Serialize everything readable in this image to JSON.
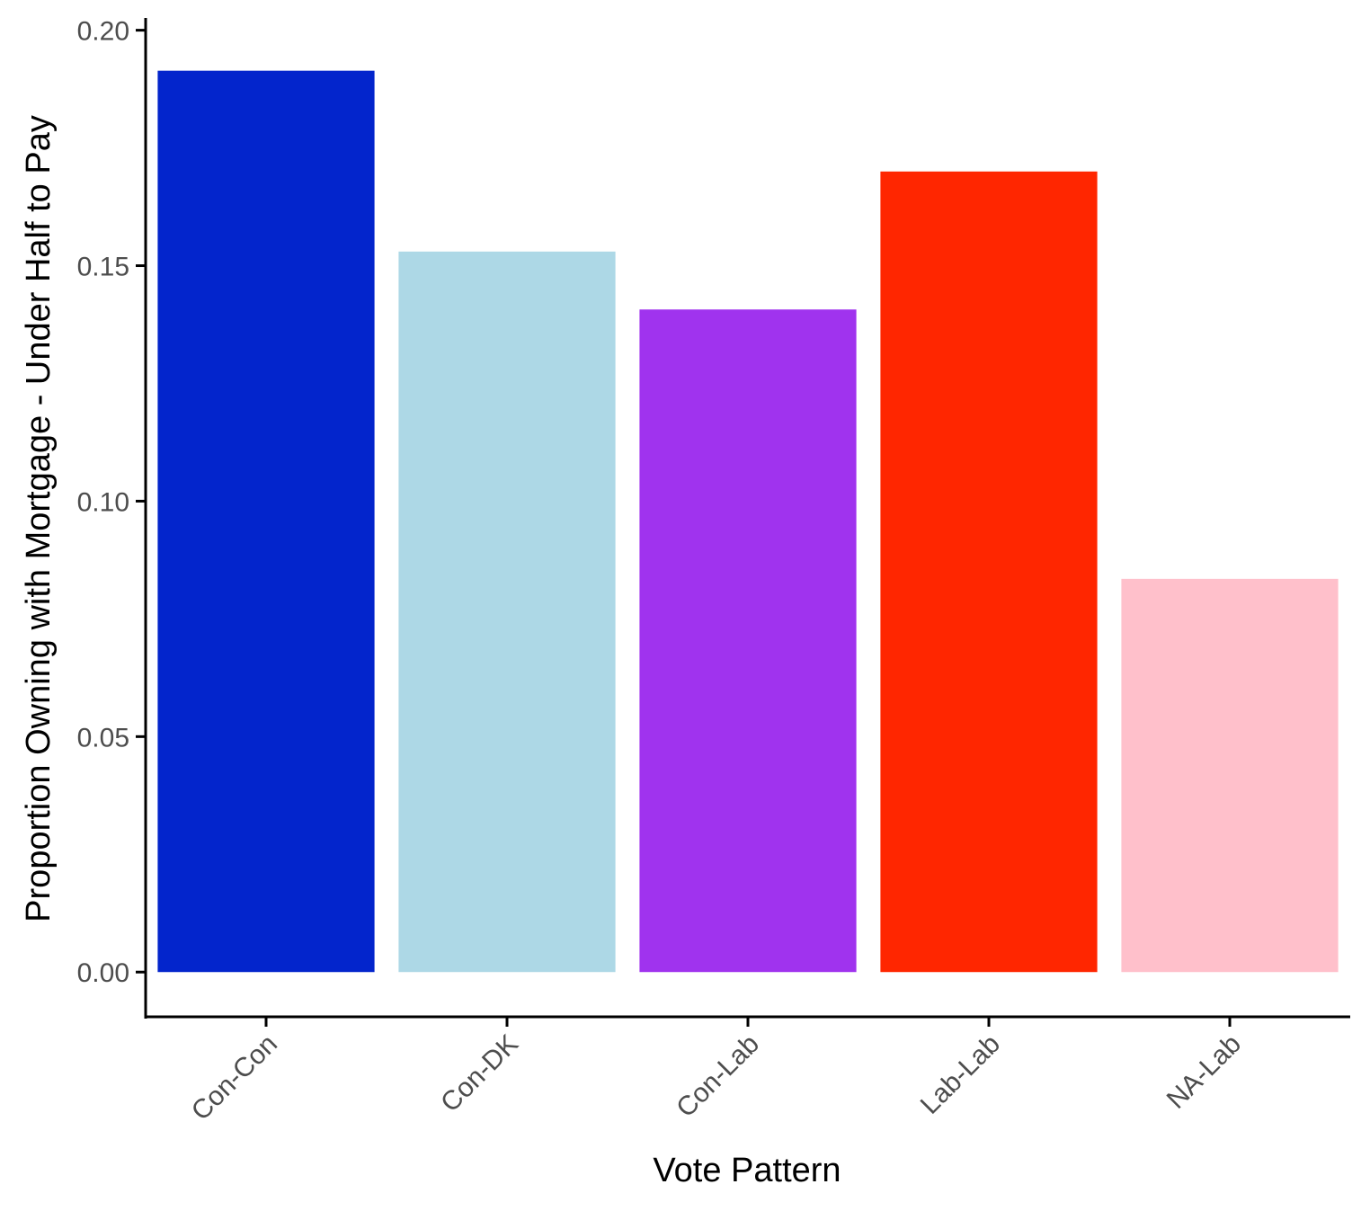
{
  "chart_data": {
    "type": "bar",
    "title": "",
    "xlabel": "Vote Pattern",
    "ylabel": "Proportion Owning with Mortgage - Under Half to Pay",
    "categories": [
      "Con-Con",
      "Con-DK",
      "Con-Lab",
      "Lab-Lab",
      "NA-Lab"
    ],
    "values": [
      0.1914,
      0.153,
      0.1407,
      0.17,
      0.0835
    ],
    "colors": [
      "#0325CC",
      "#ADD8E6",
      "#A033EE",
      "#FF2600",
      "#FFC0CB"
    ],
    "ylim": [
      -0.0095,
      0.2026
    ],
    "yticks": [
      0.0,
      0.05,
      0.1,
      0.15,
      0.2
    ],
    "ytick_labels": [
      "0.00",
      "0.05",
      "0.10",
      "0.15",
      "0.20"
    ],
    "grid": false,
    "legend": "none"
  }
}
